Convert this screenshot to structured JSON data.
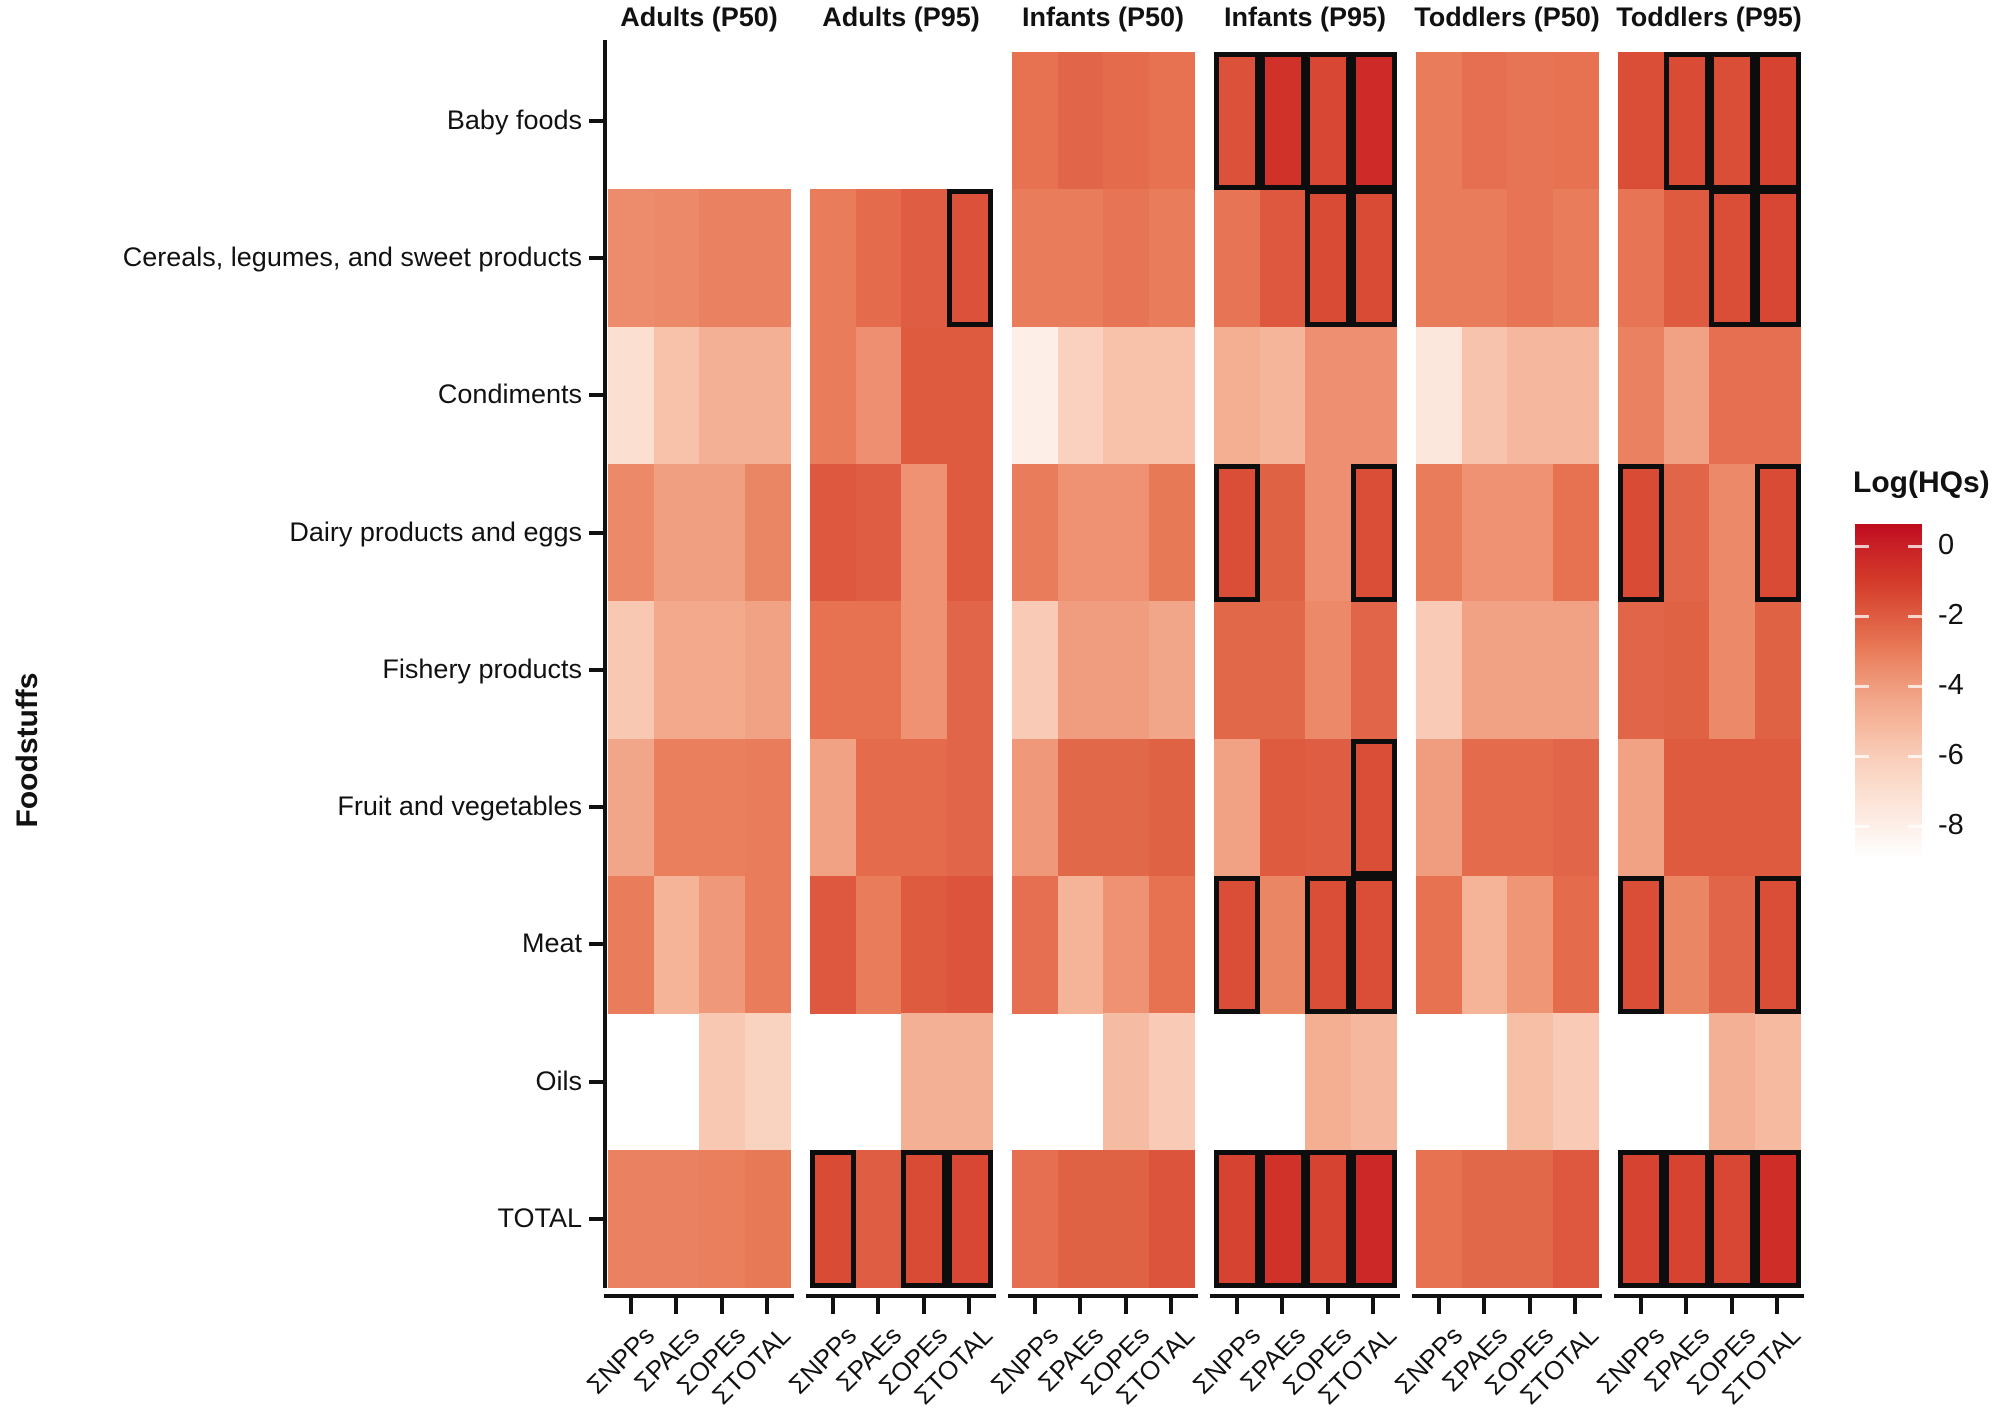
{
  "figure": {
    "y_axis_title": "Foodstuffs",
    "legend_title": "Log(HQs)"
  },
  "chart_data": {
    "type": "heatmap",
    "title": "",
    "xlabel": "",
    "ylabel": "Foodstuffs",
    "legend_position": "right",
    "value_label": "Log(HQs)",
    "legend_ticks": [
      0,
      -2,
      -4,
      -6,
      -8
    ],
    "color_domain": [
      0.63,
      -8.9
    ],
    "color_scale_stops": [
      [
        0.63,
        "#be0b1e"
      ],
      [
        0,
        "#c92026"
      ],
      [
        -1,
        "#d33a2a"
      ],
      [
        -2,
        "#de5b40"
      ],
      [
        -3,
        "#e97c5a"
      ],
      [
        -4,
        "#f09c7e"
      ],
      [
        -5,
        "#f5b59a"
      ],
      [
        -6,
        "#f9cdb9"
      ],
      [
        -7,
        "#fbdfd0"
      ],
      [
        -8,
        "#fdefe8"
      ],
      [
        -9,
        "#ffffff"
      ]
    ],
    "rows": [
      "Baby foods",
      "Cereals, legumes, and sweet products",
      "Condiments",
      "Dairy products and eggs",
      "Fishery products",
      "Fruit and vegetables",
      "Meat",
      "Oils",
      "TOTAL"
    ],
    "columns": [
      "ΣNPPs",
      "ΣPAEs",
      "ΣOPEs",
      "ΣTOTAL"
    ],
    "facets": [
      {
        "label": "Adults (P50)",
        "values": [
          [
            null,
            null,
            null,
            null
          ],
          [
            -3.5,
            -3.4,
            -3.2,
            -3.2
          ],
          [
            -7.0,
            -5.5,
            -4.8,
            -4.8
          ],
          [
            -3.4,
            -4.1,
            -4.1,
            -3.3
          ],
          [
            -5.8,
            -4.5,
            -4.5,
            -4.2
          ],
          [
            -4.4,
            -3.1,
            -3.1,
            -3.0
          ],
          [
            -3.0,
            -4.9,
            -3.9,
            -3.0
          ],
          [
            null,
            null,
            -5.8,
            -6.3
          ],
          [
            -3.2,
            -3.2,
            -3.1,
            -2.9
          ]
        ],
        "highlighted": []
      },
      {
        "label": "Adults (P95)",
        "values": [
          [
            null,
            null,
            null,
            null
          ],
          [
            -3.0,
            -2.5,
            -2.1,
            -1.7
          ],
          [
            -3.0,
            -3.6,
            -2.0,
            -2.0
          ],
          [
            -1.9,
            -2.1,
            -3.7,
            -2.0
          ],
          [
            -2.7,
            -2.7,
            -3.7,
            -2.3
          ],
          [
            -4.2,
            -2.5,
            -2.5,
            -2.3
          ],
          [
            -1.9,
            -3.0,
            -2.0,
            -1.8
          ],
          [
            null,
            null,
            -4.8,
            -4.8
          ],
          [
            -1.5,
            -2.1,
            -1.5,
            -1.4
          ]
        ],
        "highlighted": [
          [
            1,
            3
          ],
          [
            8,
            0
          ],
          [
            8,
            2
          ],
          [
            8,
            3
          ]
        ]
      },
      {
        "label": "Infants (P50)",
        "values": [
          [
            -2.7,
            -2.3,
            -2.5,
            -2.7
          ],
          [
            -3.0,
            -3.0,
            -2.8,
            -3.0
          ],
          [
            -8.0,
            -6.2,
            -5.5,
            -5.5
          ],
          [
            -3.0,
            -3.7,
            -3.7,
            -2.9
          ],
          [
            -5.9,
            -4.0,
            -4.0,
            -4.4
          ],
          [
            -3.9,
            -2.4,
            -2.4,
            -2.2
          ],
          [
            -2.6,
            -4.9,
            -3.7,
            -2.7
          ],
          [
            null,
            null,
            -5.3,
            -5.9
          ],
          [
            -2.6,
            -2.2,
            -2.2,
            -1.8
          ]
        ],
        "highlighted": []
      },
      {
        "label": "Infants (P95)",
        "values": [
          [
            -1.7,
            -0.7,
            -1.4,
            -0.4
          ],
          [
            -2.8,
            -1.9,
            -1.5,
            -1.5
          ],
          [
            -4.7,
            -5.0,
            -3.6,
            -3.6
          ],
          [
            -1.6,
            -2.2,
            -3.6,
            -1.6
          ],
          [
            -2.4,
            -2.4,
            -3.4,
            -2.3
          ],
          [
            -4.2,
            -2.0,
            -2.1,
            -1.6
          ],
          [
            -1.6,
            -3.3,
            -1.6,
            -1.6
          ],
          [
            null,
            null,
            -4.7,
            -5.1
          ],
          [
            -1.3,
            -0.7,
            -1.3,
            -0.3
          ]
        ],
        "highlighted": [
          [
            0,
            0
          ],
          [
            0,
            1
          ],
          [
            0,
            2
          ],
          [
            0,
            3
          ],
          [
            1,
            2
          ],
          [
            1,
            3
          ],
          [
            3,
            0
          ],
          [
            3,
            3
          ],
          [
            5,
            3
          ],
          [
            6,
            0
          ],
          [
            6,
            2
          ],
          [
            6,
            3
          ],
          [
            8,
            0
          ],
          [
            8,
            1
          ],
          [
            8,
            2
          ],
          [
            8,
            3
          ]
        ]
      },
      {
        "label": "Toddlers (P50)",
        "values": [
          [
            -3.0,
            -2.6,
            -2.8,
            -2.7
          ],
          [
            -3.0,
            -3.0,
            -2.8,
            -3.0
          ],
          [
            -7.5,
            -5.6,
            -5.1,
            -5.1
          ],
          [
            -3.0,
            -3.7,
            -3.7,
            -2.7
          ],
          [
            -5.9,
            -4.2,
            -4.2,
            -4.2
          ],
          [
            -4.0,
            -2.5,
            -2.5,
            -2.3
          ],
          [
            -2.7,
            -4.9,
            -3.8,
            -2.5
          ],
          [
            null,
            null,
            -5.4,
            -5.9
          ],
          [
            -2.7,
            -2.4,
            -2.4,
            -1.9
          ]
        ],
        "highlighted": []
      },
      {
        "label": "Toddlers (P95)",
        "values": [
          [
            -1.6,
            -1.5,
            -1.6,
            -1.3
          ],
          [
            -2.8,
            -2.0,
            -1.6,
            -1.4
          ],
          [
            -3.2,
            -4.2,
            -2.6,
            -2.6
          ],
          [
            -1.5,
            -2.3,
            -3.4,
            -1.5
          ],
          [
            -2.3,
            -2.2,
            -3.4,
            -2.2
          ],
          [
            -4.2,
            -2.0,
            -2.0,
            -2.0
          ],
          [
            -1.6,
            -3.3,
            -2.3,
            -1.6
          ],
          [
            null,
            null,
            -4.8,
            -5.2
          ],
          [
            -1.3,
            -1.3,
            -1.4,
            -0.5
          ]
        ],
        "highlighted": [
          [
            0,
            1
          ],
          [
            0,
            2
          ],
          [
            0,
            3
          ],
          [
            1,
            2
          ],
          [
            1,
            3
          ],
          [
            3,
            0
          ],
          [
            3,
            3
          ],
          [
            6,
            0
          ],
          [
            6,
            3
          ],
          [
            8,
            0
          ],
          [
            8,
            1
          ],
          [
            8,
            2
          ],
          [
            8,
            3
          ]
        ]
      }
    ]
  }
}
